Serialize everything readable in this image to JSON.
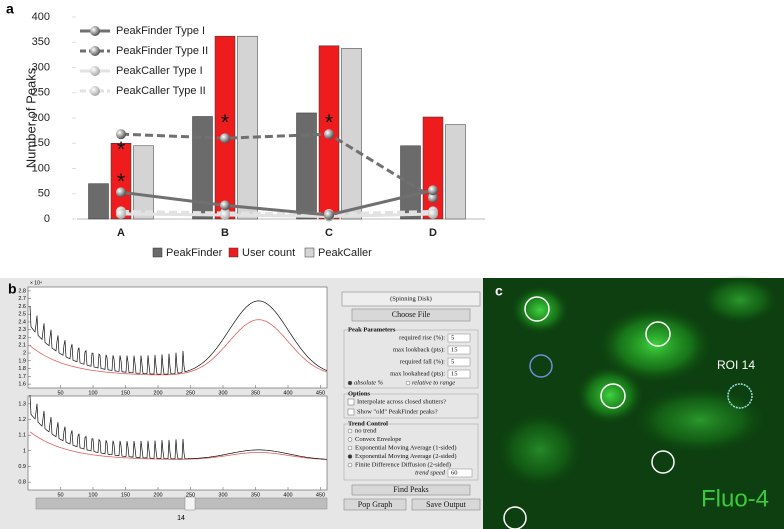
{
  "chart_data": {
    "type": "bar",
    "label": "a",
    "y_label": "Number of Peaks",
    "categories": [
      "A",
      "B",
      "C",
      "D"
    ],
    "ylim": [
      0,
      400
    ],
    "yticks": [
      0,
      50,
      100,
      150,
      200,
      250,
      300,
      350,
      400
    ],
    "significance_marker": "*",
    "series": [
      {
        "name": "PeakFinder",
        "type": "bar",
        "color": "#6b6b6b",
        "values": [
          70,
          203,
          210,
          145
        ]
      },
      {
        "name": "User count",
        "type": "bar",
        "color": "#ee1c1c",
        "values": [
          150,
          362,
          343,
          202
        ]
      },
      {
        "name": "PeakCaller",
        "type": "bar",
        "color": "#d4d4d4",
        "values": [
          145,
          362,
          338,
          187
        ]
      },
      {
        "name": "PeakFinder Type I",
        "type": "line",
        "style": "solid",
        "color": "#707070",
        "values": [
          53,
          27,
          8,
          57
        ]
      },
      {
        "name": "PeakFinder Type II",
        "type": "line",
        "style": "dashed",
        "color": "#707070",
        "values": [
          168,
          160,
          168,
          42
        ]
      },
      {
        "name": "PeakCaller Type I",
        "type": "line",
        "style": "solid",
        "color": "#e2e2e2",
        "values": [
          10,
          8,
          5,
          10
        ]
      },
      {
        "name": "PeakCaller Type II",
        "type": "line",
        "style": "dashed",
        "color": "#e2e2e2",
        "values": [
          15,
          12,
          10,
          15
        ]
      }
    ]
  },
  "panel_b": {
    "label": "b",
    "scale_label": "× 10⁴",
    "top_plot": {
      "xlim": [
        0,
        460
      ],
      "ylim": [
        1.55,
        2.85
      ],
      "xticks": [
        50,
        100,
        150,
        200,
        250,
        300,
        350,
        400,
        450
      ],
      "yticks": [
        1.6,
        1.7,
        1.8,
        1.9,
        2,
        2.1,
        2.2,
        2.3,
        2.4,
        2.5,
        2.6,
        2.7,
        2.8
      ]
    },
    "bottom_plot": {
      "xlim": [
        0,
        460
      ],
      "ylim": [
        0.75,
        1.35
      ],
      "xticks": [
        50,
        100,
        150,
        200,
        250,
        300,
        350,
        400,
        450
      ],
      "yticks": [
        0.8,
        0.9,
        1,
        1.1,
        1.2,
        1.3
      ]
    },
    "slider_value": 14,
    "side": {
      "source": "(Spinning Disk)",
      "choose_file": "Choose File",
      "peak_parameters": {
        "title": "Peak Parameters",
        "rows": [
          {
            "label": "required rise (%):",
            "value": 5
          },
          {
            "label": "max lookback (pts):",
            "value": 15
          },
          {
            "label": "required fall (%):",
            "value": 5
          },
          {
            "label": "max lookahead (pts):",
            "value": 15
          }
        ],
        "modes": [
          "absolute %",
          "relative to range"
        ]
      },
      "options": {
        "title": "Options",
        "items": [
          "Interpolate across closed shutters?",
          "Show \"old\" PeakFinder peaks?"
        ]
      },
      "trend_control": {
        "title": "Trend Control",
        "items": [
          "no trend",
          "Convex Envelope",
          "Exponential Moving Average (1-sided)",
          "Exponential Moving Average (2-sided)",
          "Finite Difference Diffusion (2-sided)"
        ],
        "speed_label": "trend speed",
        "speed": 60
      },
      "find_peaks": "Find Peaks",
      "pop_graph": "Pop Graph",
      "save_output": "Save Output"
    }
  },
  "panel_c": {
    "label": "c",
    "roi_label": "ROI 14",
    "dye": "Fluo-4"
  }
}
